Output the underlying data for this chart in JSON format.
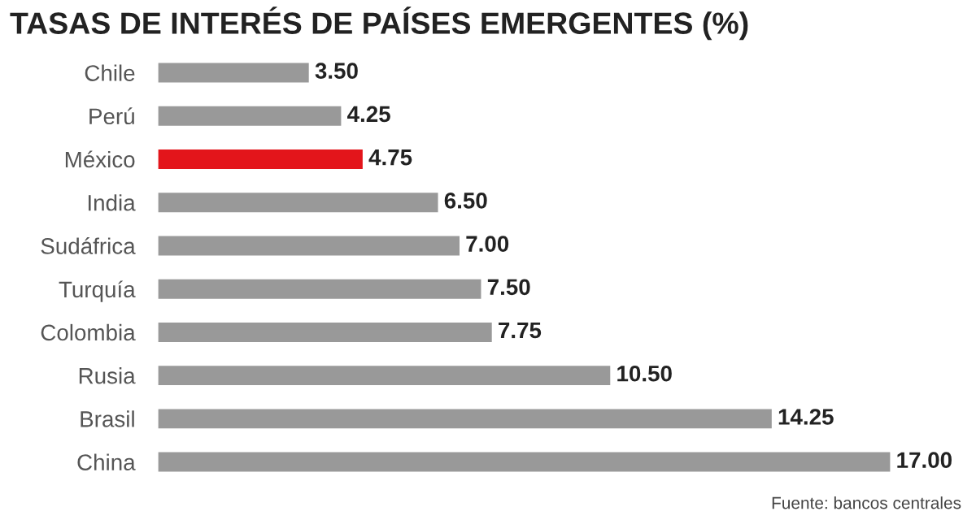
{
  "chart_data": {
    "type": "bar",
    "orientation": "horizontal",
    "title": "TASAS DE INTERÉS DE PAÍSES EMERGENTES (%)",
    "categories": [
      "Chile",
      "Perú",
      "México",
      "India",
      "Sudáfrica",
      "Turquía",
      "Colombia",
      "Rusia",
      "Brasil",
      "China"
    ],
    "values": [
      3.5,
      4.25,
      4.75,
      6.5,
      7.0,
      7.5,
      7.75,
      10.5,
      14.25,
      17.0
    ],
    "value_labels": [
      "3.50",
      "4.25",
      "4.75",
      "6.50",
      "7.00",
      "7.50",
      "7.75",
      "10.50",
      "14.25",
      "17.00"
    ],
    "colors": [
      "#999999",
      "#999999",
      "#e3151b",
      "#999999",
      "#999999",
      "#999999",
      "#999999",
      "#999999",
      "#999999",
      "#999999"
    ],
    "annotations": [
      "Fuente: bancos centrales"
    ],
    "grid": false,
    "legend": false
  }
}
